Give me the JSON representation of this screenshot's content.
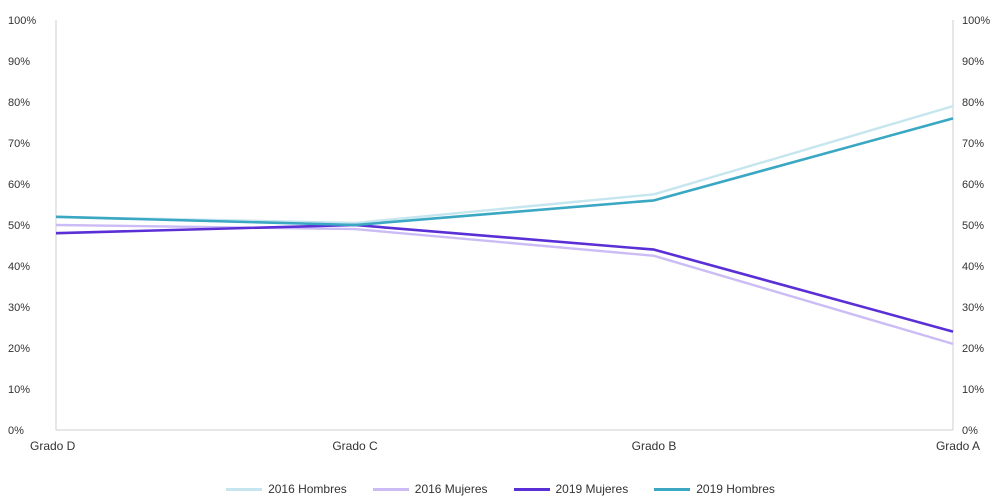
{
  "chart_data": {
    "type": "line",
    "categories": [
      "Grado D",
      "Grado C",
      "Grado B",
      "Grado A"
    ],
    "y_ticks": [
      "0%",
      "10%",
      "20%",
      "30%",
      "40%",
      "50%",
      "60%",
      "70%",
      "80%",
      "90%",
      "100%"
    ],
    "ylim": [
      0,
      100
    ],
    "grid": false,
    "legend_position": "bottom",
    "series": [
      {
        "name": "2016 Hombres",
        "color": "#c6e6ef",
        "values": [
          52,
          50.5,
          57.5,
          79
        ]
      },
      {
        "name": "2016 Mujeres",
        "color": "#cbbcf5",
        "values": [
          50,
          49,
          42.5,
          21
        ]
      },
      {
        "name": "2019 Mujeres",
        "color": "#5b2fd6",
        "values": [
          48,
          50,
          44,
          24
        ]
      },
      {
        "name": "2019 Hombres",
        "color": "#3aa7c3",
        "values": [
          52,
          50,
          56,
          76
        ]
      }
    ]
  }
}
